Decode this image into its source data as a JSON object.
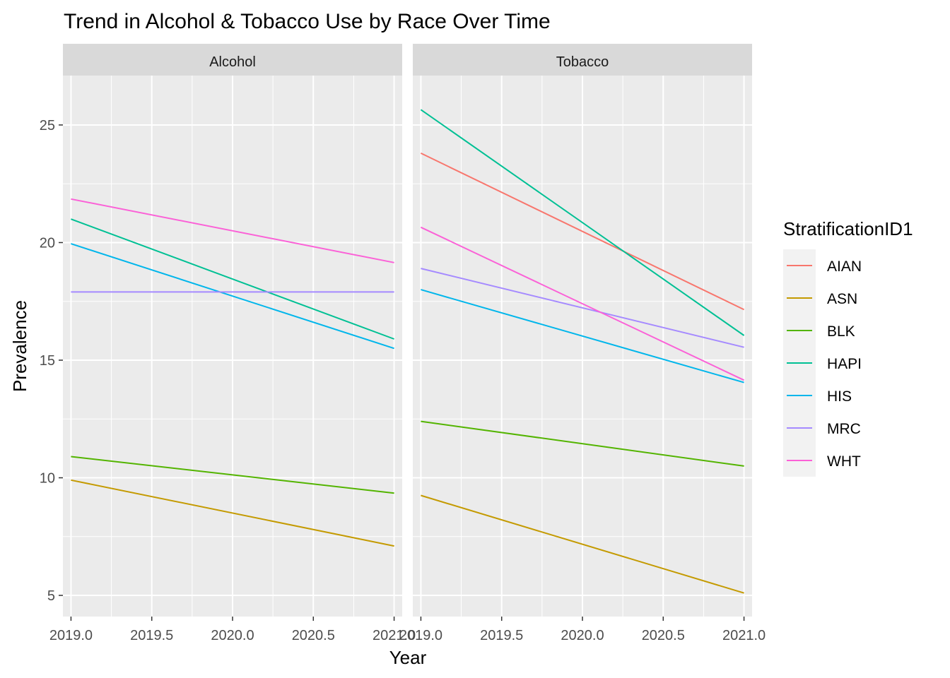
{
  "chart_data": {
    "type": "line",
    "title": "Trend in Alcohol & Tobacco Use by Race Over Time",
    "xlabel": "Year",
    "ylabel": "Prevalence",
    "legend_title": "StratificationID1",
    "legend_position": "right",
    "xlim": [
      2018.95,
      2021.05
    ],
    "ylim": [
      4.1,
      27.1
    ],
    "x_ticks": [
      2019.0,
      2019.5,
      2020.0,
      2020.5,
      2021.0
    ],
    "x_tick_labels": [
      "2019.0",
      "2019.5",
      "2020.0",
      "2020.5",
      "2021.0"
    ],
    "y_ticks": [
      5,
      10,
      15,
      20,
      25
    ],
    "y_tick_labels": [
      "5",
      "10",
      "15",
      "20",
      "25"
    ],
    "grid": true,
    "panel_background": "#ebebeb",
    "strip_background": "#d9d9d9",
    "facets": [
      {
        "name": "Alcohol",
        "series": [
          {
            "name": "AIAN",
            "color": "#F8766D",
            "x": [
              2019,
              2021
            ],
            "y": null
          },
          {
            "name": "ASN",
            "color": "#C49A00",
            "x": [
              2019,
              2021
            ],
            "y": [
              9.9,
              7.1
            ]
          },
          {
            "name": "BLK",
            "color": "#53B400",
            "x": [
              2019,
              2021
            ],
            "y": [
              10.9,
              9.35
            ]
          },
          {
            "name": "HAPI",
            "color": "#00C094",
            "x": [
              2019,
              2021
            ],
            "y": [
              21.0,
              15.9
            ]
          },
          {
            "name": "HIS",
            "color": "#00B6EB",
            "x": [
              2019,
              2021
            ],
            "y": [
              19.95,
              15.5
            ]
          },
          {
            "name": "MRC",
            "color": "#A58AFF",
            "x": [
              2019,
              2021
            ],
            "y": [
              17.9,
              17.9
            ]
          },
          {
            "name": "WHT",
            "color": "#FB61D7",
            "x": [
              2019,
              2021
            ],
            "y": [
              21.85,
              19.15
            ]
          }
        ]
      },
      {
        "name": "Tobacco",
        "series": [
          {
            "name": "AIAN",
            "color": "#F8766D",
            "x": [
              2019,
              2021
            ],
            "y": [
              23.8,
              17.15
            ]
          },
          {
            "name": "ASN",
            "color": "#C49A00",
            "x": [
              2019,
              2021
            ],
            "y": [
              9.25,
              5.1
            ]
          },
          {
            "name": "BLK",
            "color": "#53B400",
            "x": [
              2019,
              2021
            ],
            "y": [
              12.4,
              10.5
            ]
          },
          {
            "name": "HAPI",
            "color": "#00C094",
            "x": [
              2019,
              2021
            ],
            "y": [
              25.65,
              16.05
            ]
          },
          {
            "name": "HIS",
            "color": "#00B6EB",
            "x": [
              2019,
              2021
            ],
            "y": [
              18.0,
              14.05
            ]
          },
          {
            "name": "MRC",
            "color": "#A58AFF",
            "x": [
              2019,
              2021
            ],
            "y": [
              18.9,
              15.55
            ]
          },
          {
            "name": "WHT",
            "color": "#FB61D7",
            "x": [
              2019,
              2021
            ],
            "y": [
              20.65,
              14.15
            ]
          }
        ]
      }
    ],
    "legend": [
      {
        "name": "AIAN",
        "color": "#F8766D"
      },
      {
        "name": "ASN",
        "color": "#C49A00"
      },
      {
        "name": "BLK",
        "color": "#53B400"
      },
      {
        "name": "HAPI",
        "color": "#00C094"
      },
      {
        "name": "HIS",
        "color": "#00B6EB"
      },
      {
        "name": "MRC",
        "color": "#A58AFF"
      },
      {
        "name": "WHT",
        "color": "#FB61D7"
      }
    ]
  }
}
